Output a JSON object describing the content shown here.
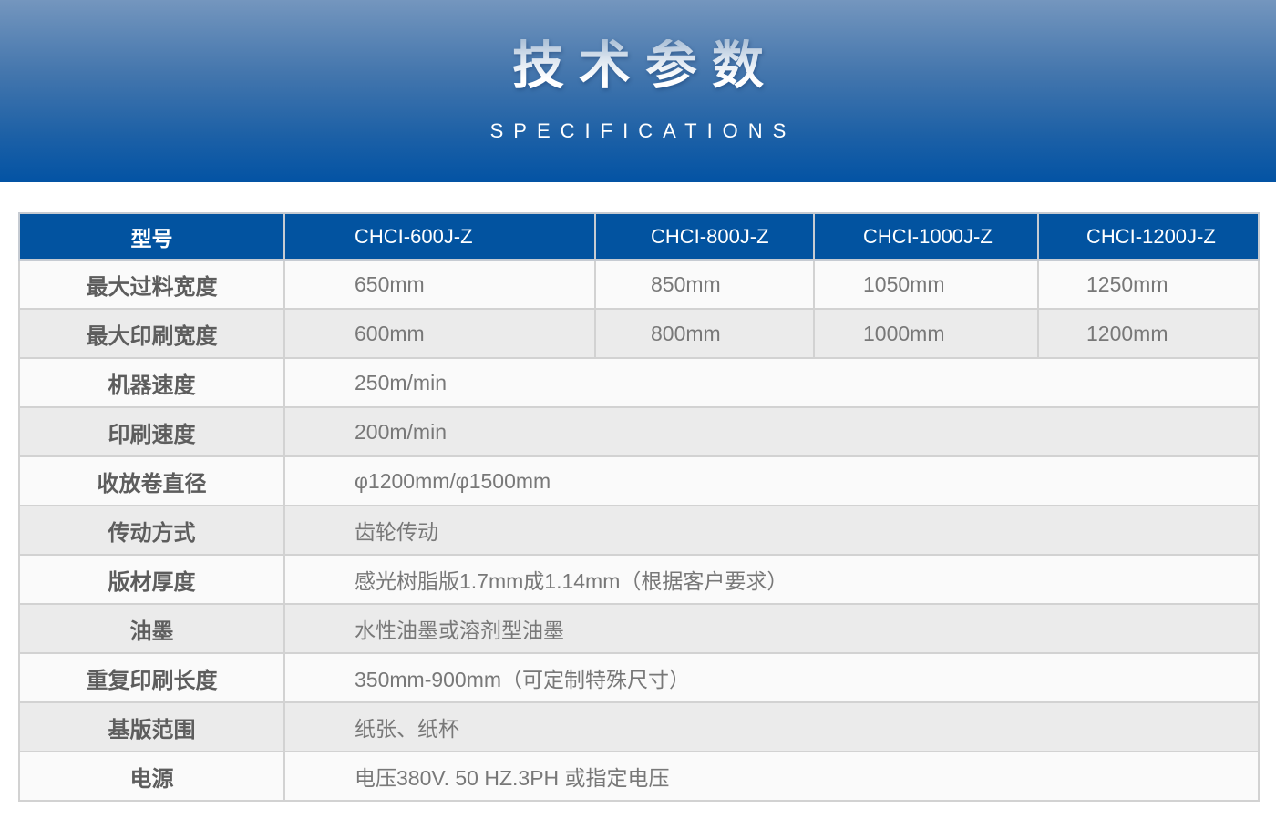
{
  "banner": {
    "title": "技术参数",
    "subtitle": "SPECIFICATIONS"
  },
  "colors": {
    "banner_gradient_top": "#7496be",
    "banner_gradient_bottom": "#0353a4",
    "header_blue": "#0253a0",
    "header_text": "#ffffff",
    "row_light": "#fafafa",
    "row_gray": "#ebebeb",
    "border_gray": "#d2d2d2",
    "label_text": "#5d5d5d",
    "value_text": "#787878"
  },
  "table": {
    "header": [
      "型号",
      "CHCI-600J-Z",
      "CHCI-800J-Z",
      "CHCI-1000J-Z",
      "CHCI-1200J-Z"
    ],
    "rows": [
      {
        "label": "最大过料宽度",
        "values": [
          "650mm",
          "850mm",
          "1050mm",
          "1250mm"
        ]
      },
      {
        "label": "最大印刷宽度",
        "values": [
          "600mm",
          "800mm",
          "1000mm",
          "1200mm"
        ]
      },
      {
        "label": "机器速度",
        "values": [
          "250m/min"
        ]
      },
      {
        "label": "印刷速度",
        "values": [
          "200m/min"
        ]
      },
      {
        "label": "收放卷直径",
        "values": [
          "φ1200mm/φ1500mm"
        ]
      },
      {
        "label": "传动方式",
        "values": [
          "齿轮传动"
        ]
      },
      {
        "label": "版材厚度",
        "values": [
          "感光树脂版1.7mm成1.14mm（根据客户要求）"
        ]
      },
      {
        "label": "油墨",
        "values": [
          "水性油墨或溶剂型油墨"
        ]
      },
      {
        "label": "重复印刷长度",
        "values": [
          "350mm-900mm（可定制特殊尺寸）"
        ]
      },
      {
        "label": "基版范围",
        "values": [
          "纸张、纸杯"
        ]
      },
      {
        "label": "电源",
        "values": [
          "电压380V. 50 HZ.3PH 或指定电压"
        ]
      }
    ]
  }
}
